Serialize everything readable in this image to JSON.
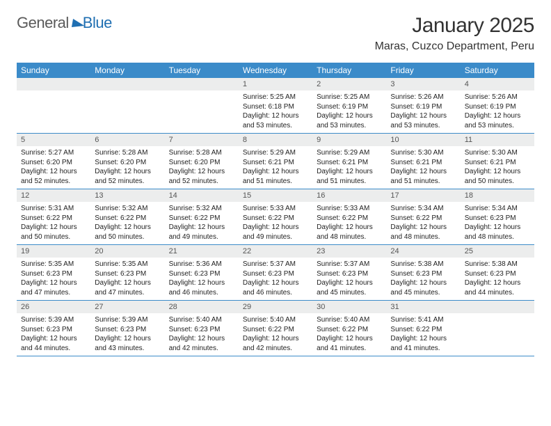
{
  "brand": {
    "word1": "General",
    "word2": "Blue"
  },
  "title": "January 2025",
  "location": "Maras, Cuzco Department, Peru",
  "colors": {
    "header_bg": "#3b8bc9",
    "header_text": "#ffffff",
    "daynum_bg": "#eceded",
    "rule": "#3b8bc9",
    "brand_blue": "#1f6fb2"
  },
  "weekdays": [
    "Sunday",
    "Monday",
    "Tuesday",
    "Wednesday",
    "Thursday",
    "Friday",
    "Saturday"
  ],
  "weeks": [
    [
      {
        "n": "",
        "empty": true
      },
      {
        "n": "",
        "empty": true
      },
      {
        "n": "",
        "empty": true
      },
      {
        "n": "1",
        "sunrise": "Sunrise: 5:25 AM",
        "sunset": "Sunset: 6:18 PM",
        "day1": "Daylight: 12 hours",
        "day2": "and 53 minutes."
      },
      {
        "n": "2",
        "sunrise": "Sunrise: 5:25 AM",
        "sunset": "Sunset: 6:19 PM",
        "day1": "Daylight: 12 hours",
        "day2": "and 53 minutes."
      },
      {
        "n": "3",
        "sunrise": "Sunrise: 5:26 AM",
        "sunset": "Sunset: 6:19 PM",
        "day1": "Daylight: 12 hours",
        "day2": "and 53 minutes."
      },
      {
        "n": "4",
        "sunrise": "Sunrise: 5:26 AM",
        "sunset": "Sunset: 6:19 PM",
        "day1": "Daylight: 12 hours",
        "day2": "and 53 minutes."
      }
    ],
    [
      {
        "n": "5",
        "sunrise": "Sunrise: 5:27 AM",
        "sunset": "Sunset: 6:20 PM",
        "day1": "Daylight: 12 hours",
        "day2": "and 52 minutes."
      },
      {
        "n": "6",
        "sunrise": "Sunrise: 5:28 AM",
        "sunset": "Sunset: 6:20 PM",
        "day1": "Daylight: 12 hours",
        "day2": "and 52 minutes."
      },
      {
        "n": "7",
        "sunrise": "Sunrise: 5:28 AM",
        "sunset": "Sunset: 6:20 PM",
        "day1": "Daylight: 12 hours",
        "day2": "and 52 minutes."
      },
      {
        "n": "8",
        "sunrise": "Sunrise: 5:29 AM",
        "sunset": "Sunset: 6:21 PM",
        "day1": "Daylight: 12 hours",
        "day2": "and 51 minutes."
      },
      {
        "n": "9",
        "sunrise": "Sunrise: 5:29 AM",
        "sunset": "Sunset: 6:21 PM",
        "day1": "Daylight: 12 hours",
        "day2": "and 51 minutes."
      },
      {
        "n": "10",
        "sunrise": "Sunrise: 5:30 AM",
        "sunset": "Sunset: 6:21 PM",
        "day1": "Daylight: 12 hours",
        "day2": "and 51 minutes."
      },
      {
        "n": "11",
        "sunrise": "Sunrise: 5:30 AM",
        "sunset": "Sunset: 6:21 PM",
        "day1": "Daylight: 12 hours",
        "day2": "and 50 minutes."
      }
    ],
    [
      {
        "n": "12",
        "sunrise": "Sunrise: 5:31 AM",
        "sunset": "Sunset: 6:22 PM",
        "day1": "Daylight: 12 hours",
        "day2": "and 50 minutes."
      },
      {
        "n": "13",
        "sunrise": "Sunrise: 5:32 AM",
        "sunset": "Sunset: 6:22 PM",
        "day1": "Daylight: 12 hours",
        "day2": "and 50 minutes."
      },
      {
        "n": "14",
        "sunrise": "Sunrise: 5:32 AM",
        "sunset": "Sunset: 6:22 PM",
        "day1": "Daylight: 12 hours",
        "day2": "and 49 minutes."
      },
      {
        "n": "15",
        "sunrise": "Sunrise: 5:33 AM",
        "sunset": "Sunset: 6:22 PM",
        "day1": "Daylight: 12 hours",
        "day2": "and 49 minutes."
      },
      {
        "n": "16",
        "sunrise": "Sunrise: 5:33 AM",
        "sunset": "Sunset: 6:22 PM",
        "day1": "Daylight: 12 hours",
        "day2": "and 48 minutes."
      },
      {
        "n": "17",
        "sunrise": "Sunrise: 5:34 AM",
        "sunset": "Sunset: 6:22 PM",
        "day1": "Daylight: 12 hours",
        "day2": "and 48 minutes."
      },
      {
        "n": "18",
        "sunrise": "Sunrise: 5:34 AM",
        "sunset": "Sunset: 6:23 PM",
        "day1": "Daylight: 12 hours",
        "day2": "and 48 minutes."
      }
    ],
    [
      {
        "n": "19",
        "sunrise": "Sunrise: 5:35 AM",
        "sunset": "Sunset: 6:23 PM",
        "day1": "Daylight: 12 hours",
        "day2": "and 47 minutes."
      },
      {
        "n": "20",
        "sunrise": "Sunrise: 5:35 AM",
        "sunset": "Sunset: 6:23 PM",
        "day1": "Daylight: 12 hours",
        "day2": "and 47 minutes."
      },
      {
        "n": "21",
        "sunrise": "Sunrise: 5:36 AM",
        "sunset": "Sunset: 6:23 PM",
        "day1": "Daylight: 12 hours",
        "day2": "and 46 minutes."
      },
      {
        "n": "22",
        "sunrise": "Sunrise: 5:37 AM",
        "sunset": "Sunset: 6:23 PM",
        "day1": "Daylight: 12 hours",
        "day2": "and 46 minutes."
      },
      {
        "n": "23",
        "sunrise": "Sunrise: 5:37 AM",
        "sunset": "Sunset: 6:23 PM",
        "day1": "Daylight: 12 hours",
        "day2": "and 45 minutes."
      },
      {
        "n": "24",
        "sunrise": "Sunrise: 5:38 AM",
        "sunset": "Sunset: 6:23 PM",
        "day1": "Daylight: 12 hours",
        "day2": "and 45 minutes."
      },
      {
        "n": "25",
        "sunrise": "Sunrise: 5:38 AM",
        "sunset": "Sunset: 6:23 PM",
        "day1": "Daylight: 12 hours",
        "day2": "and 44 minutes."
      }
    ],
    [
      {
        "n": "26",
        "sunrise": "Sunrise: 5:39 AM",
        "sunset": "Sunset: 6:23 PM",
        "day1": "Daylight: 12 hours",
        "day2": "and 44 minutes."
      },
      {
        "n": "27",
        "sunrise": "Sunrise: 5:39 AM",
        "sunset": "Sunset: 6:23 PM",
        "day1": "Daylight: 12 hours",
        "day2": "and 43 minutes."
      },
      {
        "n": "28",
        "sunrise": "Sunrise: 5:40 AM",
        "sunset": "Sunset: 6:23 PM",
        "day1": "Daylight: 12 hours",
        "day2": "and 42 minutes."
      },
      {
        "n": "29",
        "sunrise": "Sunrise: 5:40 AM",
        "sunset": "Sunset: 6:22 PM",
        "day1": "Daylight: 12 hours",
        "day2": "and 42 minutes."
      },
      {
        "n": "30",
        "sunrise": "Sunrise: 5:40 AM",
        "sunset": "Sunset: 6:22 PM",
        "day1": "Daylight: 12 hours",
        "day2": "and 41 minutes."
      },
      {
        "n": "31",
        "sunrise": "Sunrise: 5:41 AM",
        "sunset": "Sunset: 6:22 PM",
        "day1": "Daylight: 12 hours",
        "day2": "and 41 minutes."
      },
      {
        "n": "",
        "empty": true
      }
    ]
  ]
}
